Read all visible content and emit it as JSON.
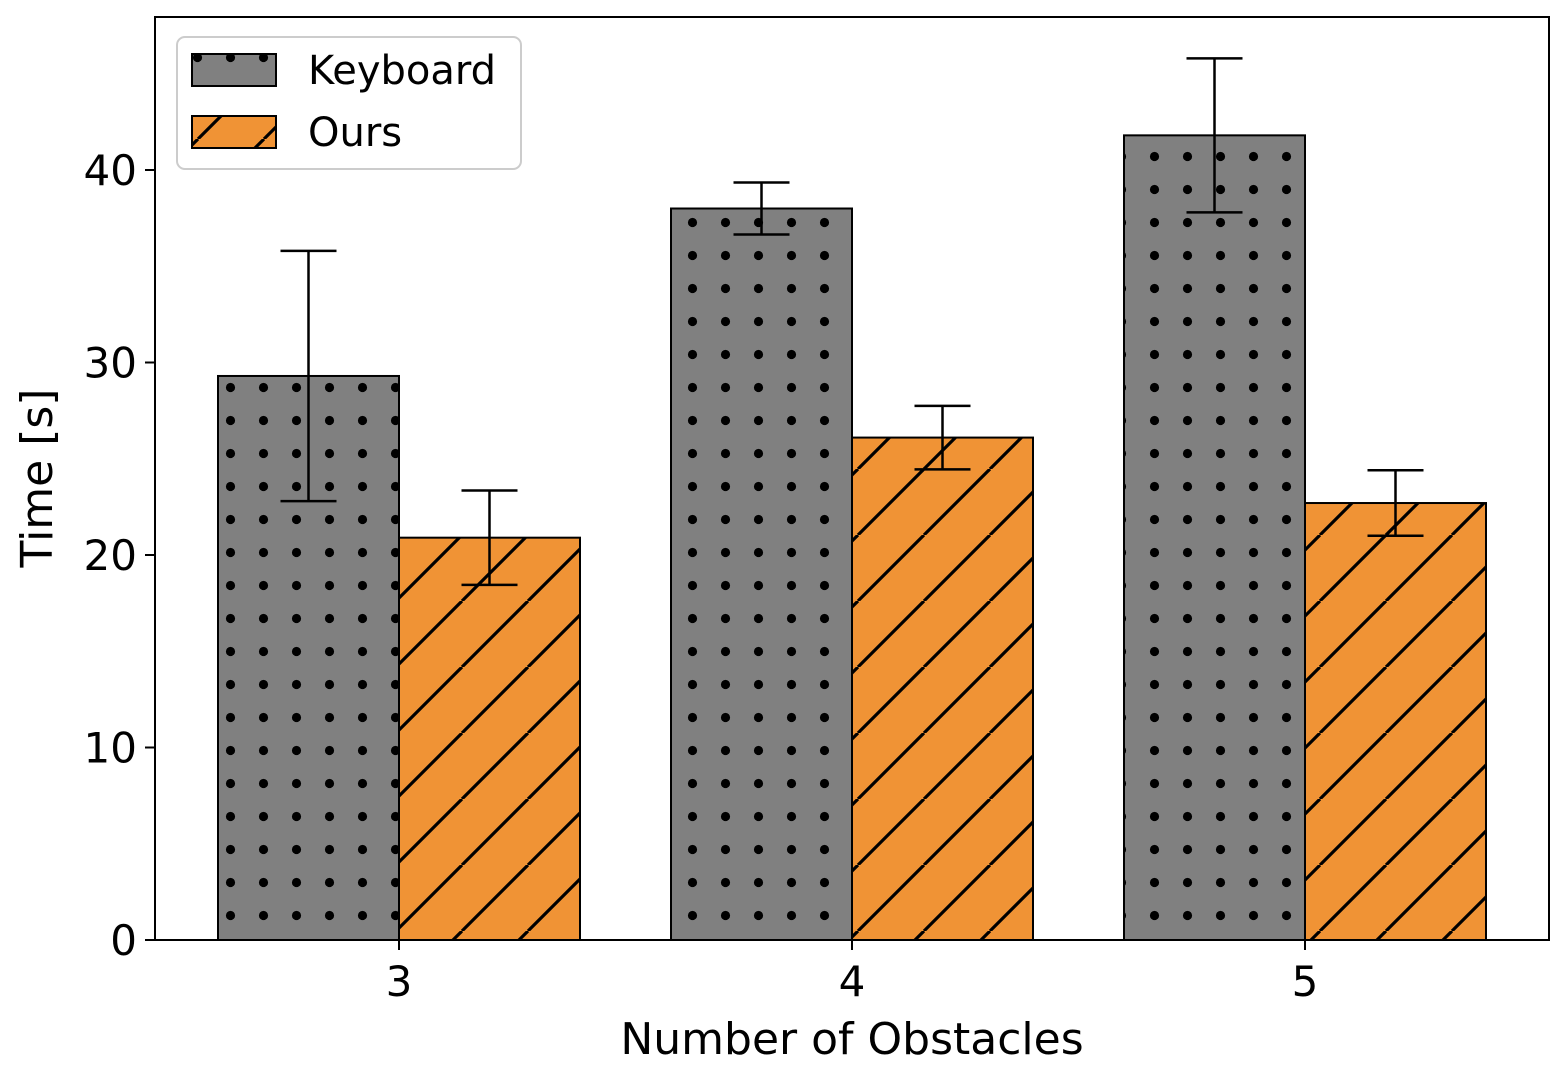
{
  "chart_data": {
    "type": "bar",
    "xlabel": "Number of Obstacles",
    "ylabel": "Time [s]",
    "categories": [
      "3",
      "4",
      "5"
    ],
    "ylim": [
      0,
      48
    ],
    "yticks": [
      0,
      10,
      20,
      30,
      40
    ],
    "grid": false,
    "legend_position": "top-left",
    "series": [
      {
        "name": "Keyboard",
        "color": "#808080",
        "hatch": "dots",
        "values": [
          29.3,
          38.0,
          41.8
        ],
        "errors": [
          6.5,
          1.35,
          4.0
        ]
      },
      {
        "name": "Ours",
        "color": "#f09335",
        "hatch": "diagonal",
        "values": [
          20.9,
          26.1,
          22.7
        ],
        "errors": [
          2.45,
          1.65,
          1.7
        ]
      }
    ]
  }
}
